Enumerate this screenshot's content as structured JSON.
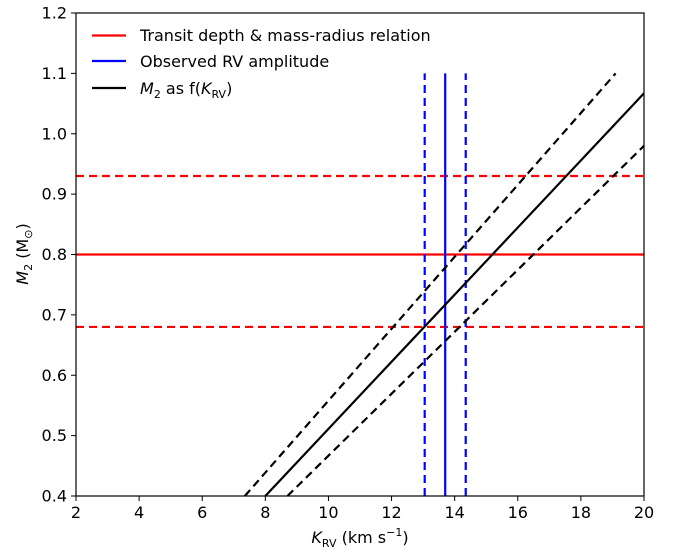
{
  "chart_data": {
    "type": "line",
    "title": "",
    "xlabel": "K_RV (km s^-1)",
    "ylabel": "M_2 (M_sun)",
    "xlim": [
      2,
      20
    ],
    "ylim": [
      0.4,
      1.2
    ],
    "xticks": [
      "2",
      "4",
      "6",
      "8",
      "10",
      "12",
      "14",
      "16",
      "18",
      "20"
    ],
    "yticks": [
      "0.4",
      "0.5",
      "0.6",
      "0.7",
      "0.8",
      "0.9",
      "1.0",
      "1.1",
      "1.2"
    ],
    "grid": false,
    "legend_position": "top-left",
    "legend": [
      {
        "label": "Transit depth & mass-radius relation",
        "color": "#ff0000"
      },
      {
        "label": "Observed RV amplitude",
        "color": "#0000ff"
      },
      {
        "label_parts": [
          "M",
          "2",
          " as f(",
          "K",
          "RV",
          ")"
        ],
        "color": "#000000"
      }
    ],
    "axis_label_parts": {
      "x": [
        "K",
        "RV",
        " (km s",
        "−1",
        ")"
      ],
      "y": [
        "M",
        "2",
        " (M",
        "⊙",
        ")"
      ]
    },
    "series": [
      {
        "name": "Transit depth & mass-radius relation",
        "color": "#ff0000",
        "style": "solid",
        "kind": "horizontal",
        "y": 0.8
      },
      {
        "name": "Transit depth & mass-radius relation",
        "color": "#ff0000",
        "style": "dashed",
        "kind": "horizontal",
        "y": 0.93
      },
      {
        "name": "Transit depth & mass-radius relation",
        "color": "#ff0000",
        "style": "dashed",
        "kind": "horizontal",
        "y": 0.68
      },
      {
        "name": "Observed RV amplitude",
        "color": "#0000ff",
        "style": "solid",
        "kind": "vertical",
        "x": 13.7,
        "y_range": [
          0.4,
          1.1
        ]
      },
      {
        "name": "Observed RV amplitude",
        "color": "#0000ff",
        "style": "dashed",
        "kind": "vertical",
        "x": 13.05,
        "y_range": [
          0.4,
          1.1
        ]
      },
      {
        "name": "Observed RV amplitude",
        "color": "#0000ff",
        "style": "dashed",
        "kind": "vertical",
        "x": 14.35,
        "y_range": [
          0.4,
          1.1
        ]
      },
      {
        "name": "M2 as f(K_RV)",
        "color": "#000000",
        "style": "solid",
        "kind": "line",
        "points": [
          [
            8.0,
            0.4
          ],
          [
            20.0,
            1.067
          ]
        ]
      },
      {
        "name": "M2 as f(K_RV)",
        "color": "#000000",
        "style": "dashed",
        "kind": "line",
        "points": [
          [
            7.35,
            0.4
          ],
          [
            19.1,
            1.1
          ]
        ]
      },
      {
        "name": "M2 as f(K_RV)",
        "color": "#000000",
        "style": "dashed",
        "kind": "line",
        "points": [
          [
            8.7,
            0.4
          ],
          [
            20.0,
            0.98
          ]
        ]
      }
    ]
  }
}
